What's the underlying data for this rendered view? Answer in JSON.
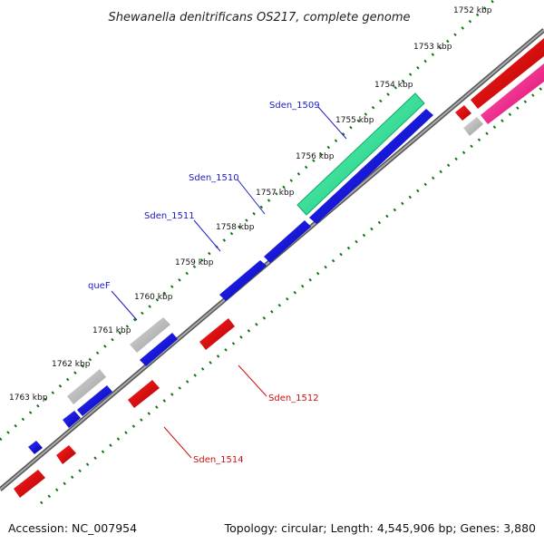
{
  "title": "Shewanella denitrificans OS217, complete genome",
  "accession": "Accession: NC_007954",
  "summary": "Topology: circular; Length: 4,545,906 bp; Genes: 3,880",
  "ticks": [
    "1752 kbp",
    "1753 kbp",
    "1754 kbp",
    "1755 kbp",
    "1756 kbp",
    "1757 kbp",
    "1758 kbp",
    "1759 kbp",
    "1760 kbp",
    "1761 kbp",
    "1762 kbp",
    "1763 kbp"
  ],
  "gene_labels": [
    {
      "text": "Sden_1509",
      "color": "blue"
    },
    {
      "text": "Sden_1510",
      "color": "blue"
    },
    {
      "text": "Sden_1511",
      "color": "blue"
    },
    {
      "text": "queF",
      "color": "blue"
    },
    {
      "text": "Sden_1512",
      "color": "red"
    },
    {
      "text": "Sden_1514",
      "color": "red"
    }
  ],
  "colors": {
    "backbone": "#888888",
    "forward_cds": "#0000dd",
    "reverse_cds": "#dd0000",
    "rna": "#bbbbbb",
    "highlight": "#22dd88",
    "pink": "#ff2288",
    "tick_dots": "#117711"
  }
}
